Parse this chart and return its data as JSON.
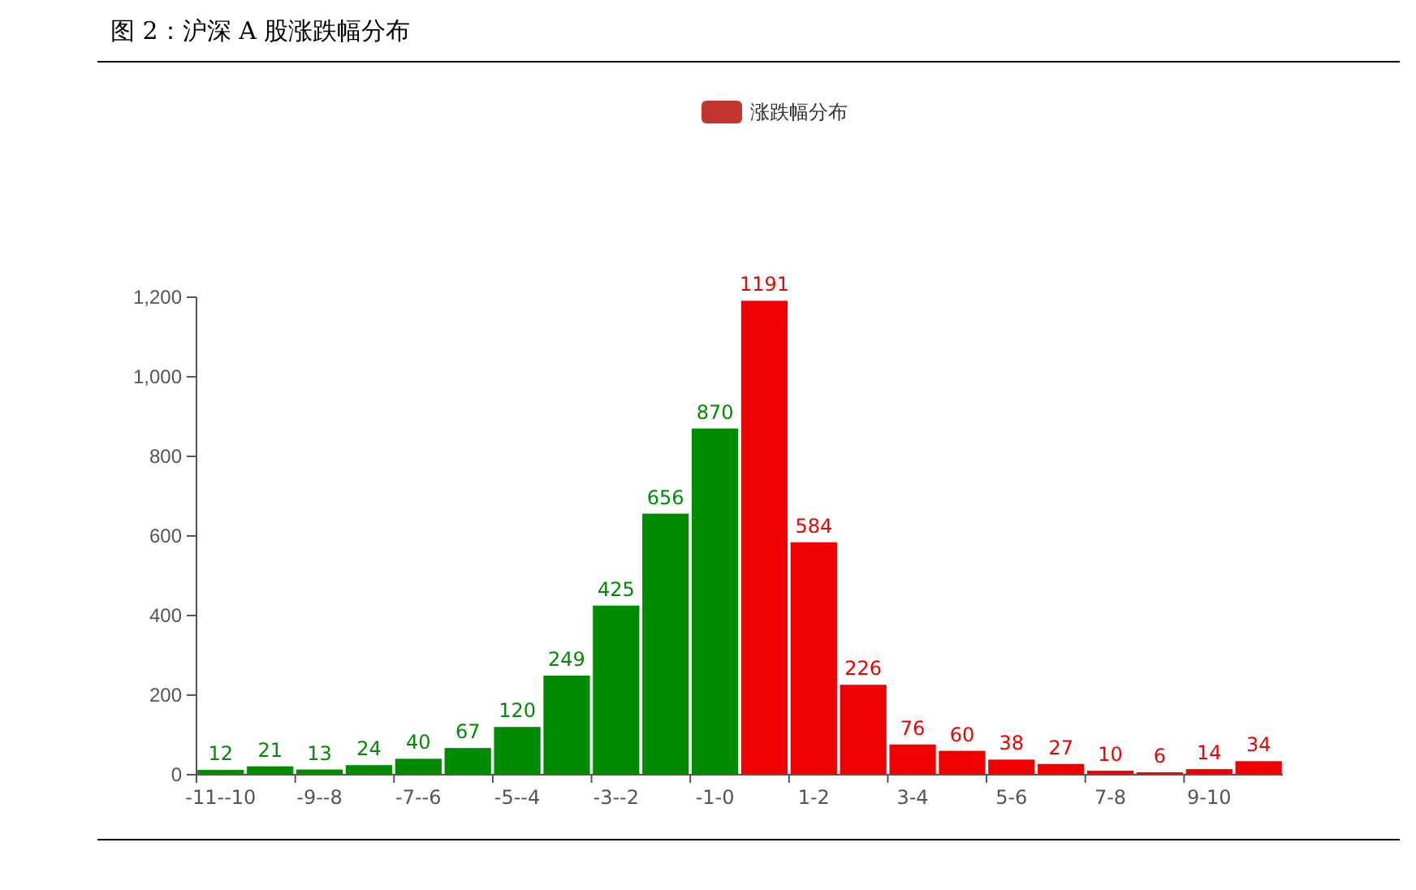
{
  "chart_data": {
    "type": "bar",
    "title": "图 2：沪深 A 股涨跌幅分布",
    "categories": [
      "-11--10",
      null,
      "-9--8",
      null,
      "-7--6",
      null,
      "-5--4",
      null,
      "-3--2",
      null,
      "-1-0",
      null,
      "1-2",
      null,
      "3-4",
      null,
      "5-6",
      null,
      "7-8",
      null,
      "9-10",
      null
    ],
    "series": [
      {
        "name": "涨跌幅分布",
        "color": "#c23531",
        "values": [
          12,
          21,
          13,
          24,
          40,
          67,
          120,
          249,
          425,
          656,
          870,
          1191,
          584,
          226,
          76,
          60,
          38,
          27,
          10,
          6,
          14,
          34
        ],
        "colors": [
          "#008c00",
          "#008c00",
          "#008c00",
          "#008c00",
          "#008c00",
          "#008c00",
          "#008c00",
          "#008c00",
          "#008c00",
          "#008c00",
          "#008c00",
          "#f00000",
          "#f00000",
          "#f00000",
          "#f00000",
          "#f00000",
          "#f00000",
          "#f00000",
          "#f00000",
          "#f00000",
          "#f00000",
          "#f00000"
        ]
      }
    ],
    "ylim": [
      0,
      1200
    ],
    "yticks": [
      0,
      200,
      400,
      600,
      800,
      {
        "value": 1000,
        "label": "1,000"
      },
      {
        "value": 1200,
        "label": "1,200"
      }
    ],
    "grid": false,
    "legend": "top",
    "data_labels": true
  }
}
